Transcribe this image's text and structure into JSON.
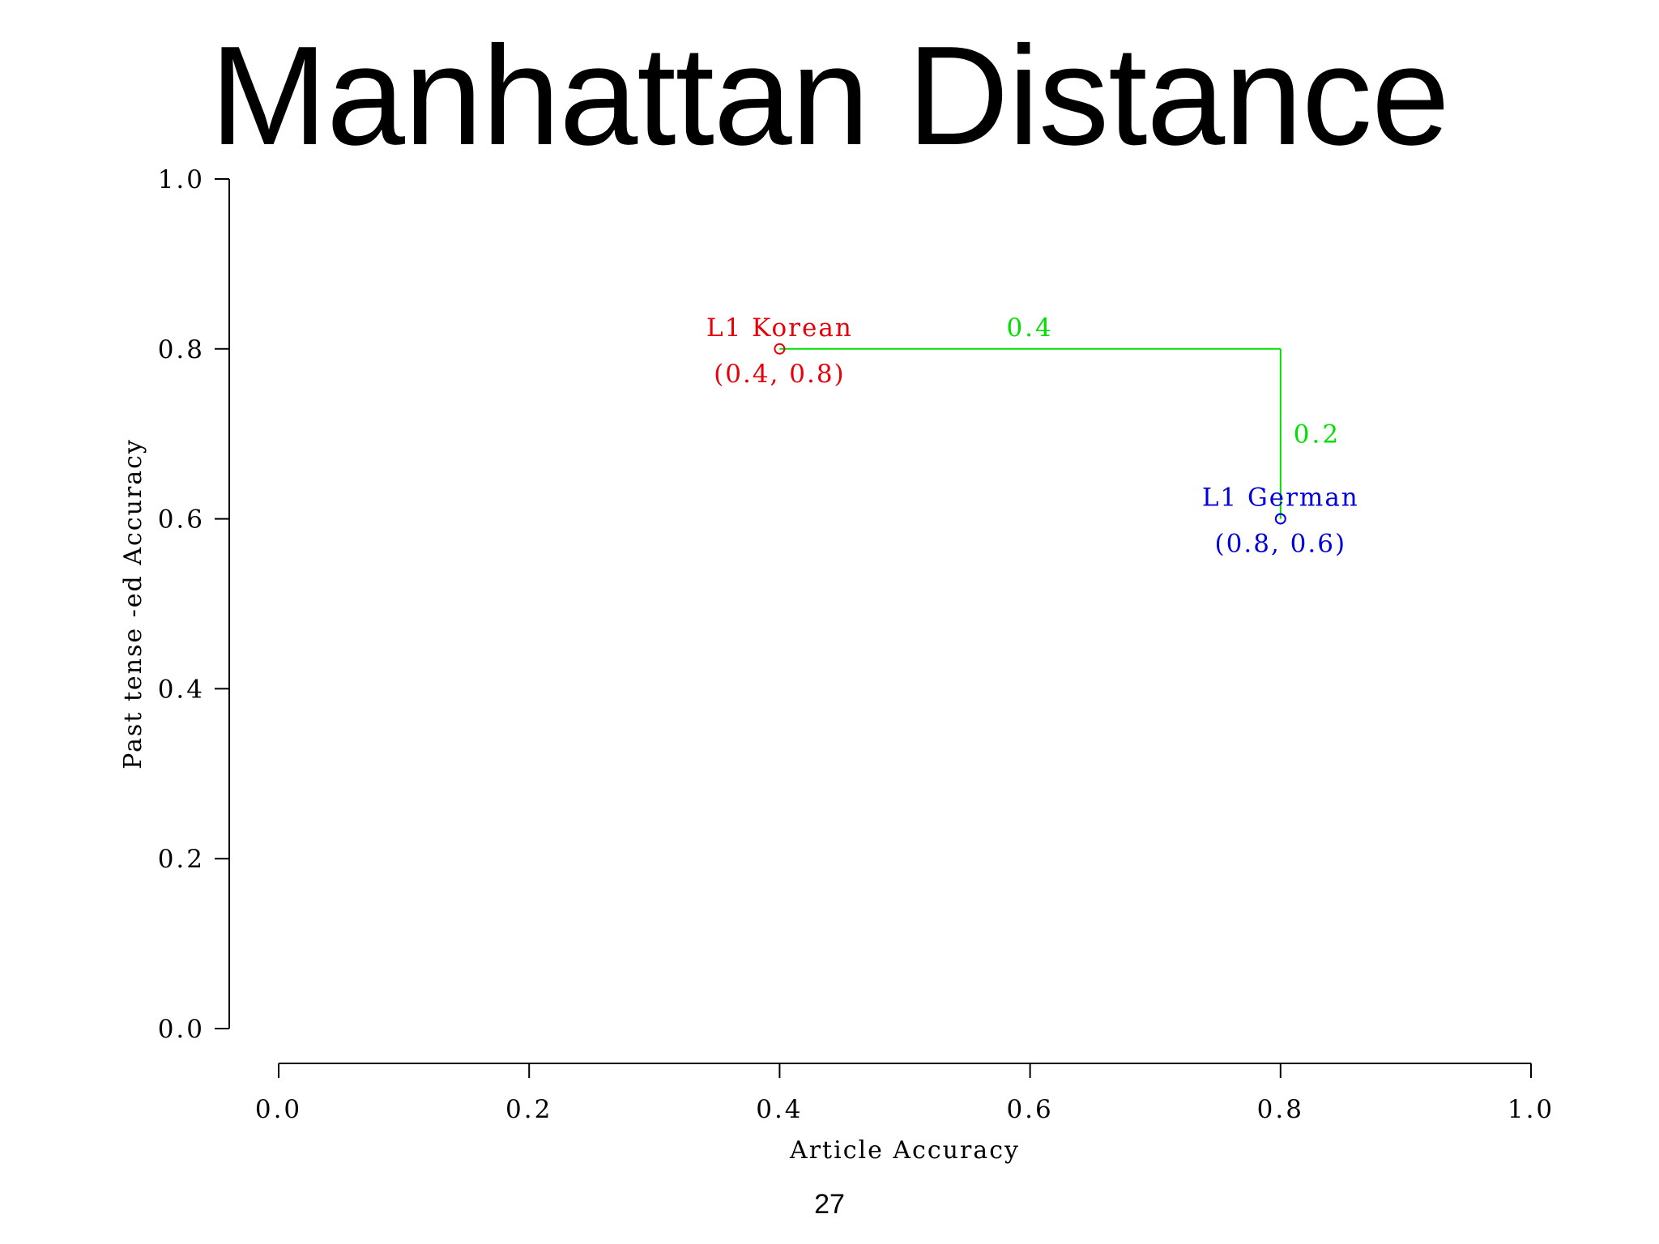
{
  "slide": {
    "title": "Manhattan Distance",
    "page_number": "27"
  },
  "chart_data": {
    "type": "scatter",
    "title": "",
    "xlabel": "Article Accuracy",
    "ylabel": "Past tense -ed Accuracy",
    "xlim": [
      0.0,
      1.0
    ],
    "ylim": [
      0.0,
      1.0
    ],
    "x_ticks": [
      "0.0",
      "0.2",
      "0.4",
      "0.6",
      "0.8",
      "1.0"
    ],
    "y_ticks": [
      "0.0",
      "0.2",
      "0.4",
      "0.6",
      "0.8",
      "1.0"
    ],
    "grid": false,
    "legend": "none",
    "points": [
      {
        "label": "L1 Korean",
        "coord_label": "(0.4, 0.8)",
        "x": 0.4,
        "y": 0.8,
        "color": "#e8000b"
      },
      {
        "label": "L1 German",
        "coord_label": "(0.8, 0.6)",
        "x": 0.8,
        "y": 0.6,
        "color": "#0000dd"
      }
    ],
    "distance_path": {
      "color": "#00e000",
      "horizontal": {
        "from": [
          0.4,
          0.8
        ],
        "to": [
          0.8,
          0.8
        ],
        "label": "0.4"
      },
      "vertical": {
        "from": [
          0.8,
          0.8
        ],
        "to": [
          0.8,
          0.6
        ],
        "label": "0.2"
      }
    }
  }
}
